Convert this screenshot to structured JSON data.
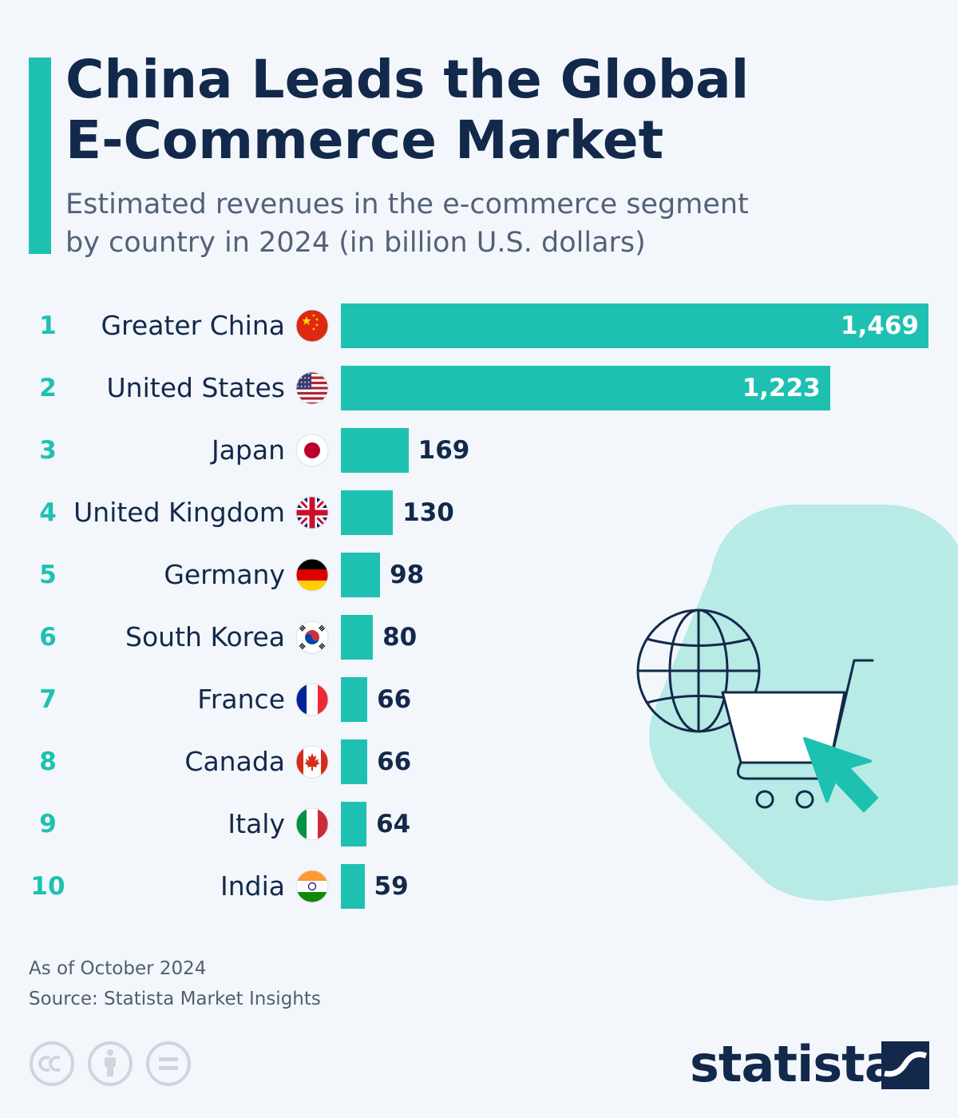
{
  "header": {
    "title_line1": "China Leads the Global",
    "title_line2": "E-Commerce Market",
    "subtitle_line1": "Estimated revenues in the e-commerce segment",
    "subtitle_line2": "by country in 2024 (in billion U.S. dollars)"
  },
  "colors": {
    "accent": "#1ec1b1",
    "title": "#13294b",
    "background": "#f3f7fb",
    "decor": "#b8eae6"
  },
  "chart_data": {
    "type": "bar",
    "orientation": "horizontal",
    "title": "China Leads the Global E-Commerce Market",
    "subtitle": "Estimated revenues in the e-commerce segment by country in 2024 (in billion U.S. dollars)",
    "categories": [
      "Greater China",
      "United States",
      "Japan",
      "United Kingdom",
      "Germany",
      "South Korea",
      "France",
      "Canada",
      "Italy",
      "India"
    ],
    "ranks": [
      "1",
      "2",
      "3",
      "4",
      "5",
      "6",
      "7",
      "8",
      "9",
      "10"
    ],
    "values": [
      1469,
      1223,
      169,
      130,
      98,
      80,
      66,
      66,
      64,
      59
    ],
    "value_labels": [
      "1,469",
      "1,223",
      "169",
      "130",
      "98",
      "80",
      "66",
      "66",
      "64",
      "59"
    ],
    "flags": [
      "china-flag-icon",
      "usa-flag-icon",
      "japan-flag-icon",
      "uk-flag-icon",
      "germany-flag-icon",
      "south-korea-flag-icon",
      "france-flag-icon",
      "canada-flag-icon",
      "italy-flag-icon",
      "india-flag-icon"
    ],
    "xlim": [
      0,
      1469
    ],
    "grid": false,
    "legend": "none"
  },
  "illustration": {
    "icons": [
      "hexagon-shape",
      "globe-icon",
      "shopping-cart-icon",
      "cursor-arrow-icon"
    ]
  },
  "footer": {
    "note": "As of October 2024",
    "source": "Source: Statista Market Insights",
    "license_icons": [
      "cc-icon",
      "attribution-icon",
      "no-derivatives-icon"
    ],
    "logo_text": "statista",
    "logo_icon": "statista-logo-icon"
  }
}
